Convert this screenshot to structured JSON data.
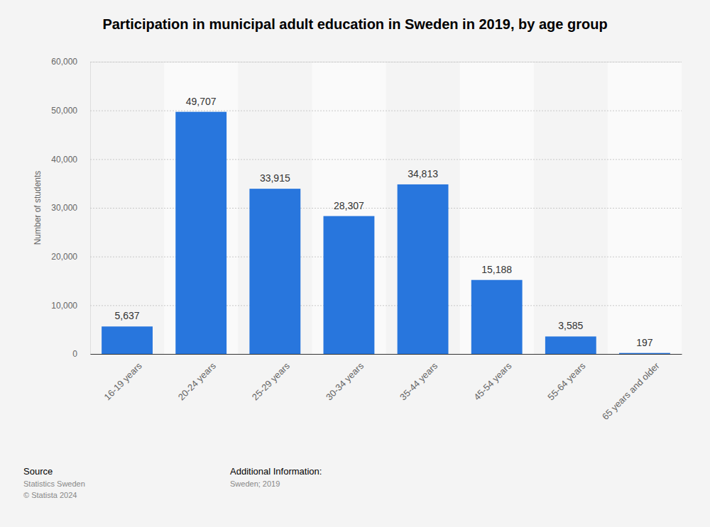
{
  "chart_data": {
    "type": "bar",
    "title": "Participation in municipal adult education in Sweden in 2019, by age group",
    "y_label": "Number of students",
    "categories": [
      "16-19 years",
      "20-24 years",
      "25-29 years",
      "30-34 years",
      "35-44 years",
      "45-54 years",
      "55-64 years",
      "65 years and older"
    ],
    "values": [
      5637,
      49707,
      33915,
      28307,
      34813,
      15188,
      3585,
      197
    ],
    "value_labels": [
      "5,637",
      "49,707",
      "33,915",
      "28,307",
      "34,813",
      "15,188",
      "3,585",
      "197"
    ],
    "color": "#2876dd",
    "ylim": [
      0,
      60000
    ],
    "yticks": [
      0,
      {
        "value": 10000,
        "label": "10,000"
      },
      {
        "value": 20000,
        "label": "20,000"
      },
      {
        "value": 30000,
        "label": "30,000"
      },
      {
        "value": 40000,
        "label": "40,000"
      },
      {
        "value": 50000,
        "label": "50,000"
      },
      {
        "value": 60000,
        "label": "60,000"
      }
    ],
    "grid": true,
    "data_labels": true,
    "source_label": "Source",
    "source": [
      "Statistics Sweden",
      "© Statista 2024"
    ],
    "info_label": "Additional Information:",
    "info": "Sweden; 2019"
  }
}
